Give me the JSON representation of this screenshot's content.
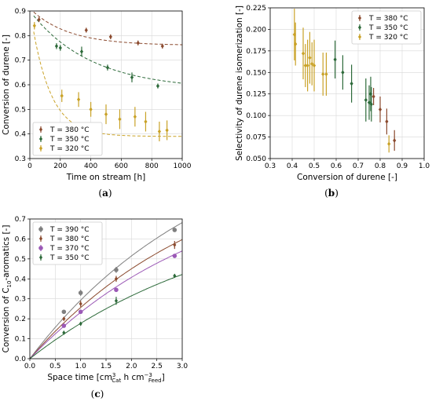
{
  "chart_data": [
    {
      "panel_label": "(a)",
      "type": "scatter",
      "xlabel": "Time on stream [h]",
      "ylabel": "Conversion of durene [-]",
      "xlim": [
        0,
        1000
      ],
      "ylim": [
        0.3,
        0.9
      ],
      "xticks": [
        0,
        200,
        400,
        600,
        800,
        1000
      ],
      "yticks": [
        0.3,
        0.4,
        0.5,
        0.6,
        0.7,
        0.8,
        0.9
      ],
      "legend_position": "bottom-left",
      "grid": true,
      "series": [
        {
          "name": "T = 380 °C",
          "color": "#8b4a2e",
          "marker": "diamond",
          "x": [
            60,
            370,
            530,
            710,
            870
          ],
          "y": [
            0.865,
            0.822,
            0.795,
            0.77,
            0.757
          ],
          "err": [
            0.01,
            0.01,
            0.01,
            0.01,
            0.01
          ],
          "fit": {
            "a": 0.76,
            "b": 0.15,
            "k": 0.004
          }
        },
        {
          "name": "T = 350 °C",
          "color": "#2d6a3a",
          "marker": "diamond",
          "x": [
            175,
            200,
            340,
            510,
            670,
            840
          ],
          "y": [
            0.757,
            0.75,
            0.735,
            0.67,
            0.63,
            0.595
          ],
          "err": [
            0.012,
            0.012,
            0.02,
            0.012,
            0.02,
            0.01
          ],
          "fit": {
            "a": 0.58,
            "b": 0.32,
            "k": 0.0025
          }
        },
        {
          "name": "T = 320 °C",
          "color": "#c9a227",
          "marker": "diamond",
          "x": [
            30,
            210,
            320,
            400,
            500,
            590,
            690,
            760,
            850,
            900
          ],
          "y": [
            0.84,
            0.555,
            0.54,
            0.5,
            0.48,
            0.46,
            0.47,
            0.45,
            0.41,
            0.415
          ],
          "err": [
            0.015,
            0.025,
            0.03,
            0.03,
            0.04,
            0.04,
            0.04,
            0.04,
            0.04,
            0.04
          ],
          "fit": {
            "a": 0.39,
            "b": 0.52,
            "k": 0.008
          }
        }
      ]
    },
    {
      "panel_label": "(b)",
      "type": "scatter",
      "xlabel": "Conversion of durene [-]",
      "ylabel": "Selectivity of durene isomerization [-]",
      "xlim": [
        0.3,
        1.0
      ],
      "ylim": [
        0.05,
        0.225
      ],
      "xticks": [
        0.3,
        0.4,
        0.5,
        0.6,
        0.7,
        0.8,
        0.9,
        1.0
      ],
      "yticks": [
        0.05,
        0.075,
        0.1,
        0.125,
        0.15,
        0.175,
        0.2,
        0.225
      ],
      "legend_position": "top-right",
      "grid": true,
      "series": [
        {
          "name": "T = 380 °C",
          "color": "#8b4a2e",
          "marker": "diamond",
          "x": [
            0.77,
            0.8,
            0.83,
            0.865
          ],
          "y": [
            0.122,
            0.107,
            0.093,
            0.071
          ],
          "err": [
            0.01,
            0.015,
            0.015,
            0.012
          ]
        },
        {
          "name": "T = 350 °C",
          "color": "#2d6a3a",
          "marker": "diamond",
          "x": [
            0.595,
            0.63,
            0.67,
            0.735,
            0.75,
            0.757,
            0.76
          ],
          "y": [
            0.165,
            0.15,
            0.137,
            0.118,
            0.115,
            0.125,
            0.113
          ],
          "err": [
            0.022,
            0.02,
            0.022,
            0.025,
            0.02,
            0.02,
            0.02
          ]
        },
        {
          "name": "T = 320 °C",
          "color": "#c9a227",
          "marker": "diamond",
          "x": [
            0.41,
            0.415,
            0.45,
            0.46,
            0.47,
            0.48,
            0.49,
            0.5,
            0.54,
            0.555,
            0.84
          ],
          "y": [
            0.194,
            0.183,
            0.172,
            0.158,
            0.158,
            0.167,
            0.16,
            0.158,
            0.148,
            0.148,
            0.067
          ],
          "err": [
            0.03,
            0.025,
            0.03,
            0.025,
            0.03,
            0.03,
            0.025,
            0.03,
            0.025,
            0.025,
            0.01
          ]
        }
      ]
    },
    {
      "panel_label": "(c)",
      "type": "scatter",
      "xlabel_parts": [
        "Space time [cm",
        "3",
        "Cat",
        " h cm",
        "−3",
        "Feed",
        "]"
      ],
      "ylabel_parts": [
        "Conversion of C",
        "10",
        "-aromatics [-]"
      ],
      "xlim": [
        0.0,
        3.0
      ],
      "ylim": [
        0.0,
        0.7
      ],
      "xticks": [
        0.0,
        0.5,
        1.0,
        1.5,
        2.0,
        2.5,
        3.0
      ],
      "yticks": [
        0.0,
        0.1,
        0.2,
        0.3,
        0.4,
        0.5,
        0.6,
        0.7
      ],
      "legend_position": "top-left",
      "grid": true,
      "series": [
        {
          "name": "T = 390 °C",
          "color": "#7f7f7f",
          "marker": "circle",
          "x": [
            0.67,
            1.0,
            1.7,
            2.85
          ],
          "y": [
            0.235,
            0.33,
            0.445,
            0.645
          ],
          "err": [
            0.01,
            0.015,
            0.015,
            0.01
          ],
          "fit": {
            "a": 1.2,
            "k": 0.28
          }
        },
        {
          "name": "T = 380 °C",
          "color": "#8b4a2e",
          "marker": "diamond",
          "x": [
            0.67,
            1.0,
            1.7,
            2.85
          ],
          "y": [
            0.2,
            0.275,
            0.4,
            0.57
          ],
          "err": [
            0.01,
            0.015,
            0.015,
            0.02
          ],
          "fit": {
            "a": 1.05,
            "k": 0.28
          }
        },
        {
          "name": "T = 370 °C",
          "color": "#9b59b6",
          "marker": "circle",
          "x": [
            0.67,
            1.0,
            1.7,
            2.85
          ],
          "y": [
            0.165,
            0.235,
            0.345,
            0.515
          ],
          "err": [
            0.01,
            0.01,
            0.01,
            0.01
          ],
          "fit": {
            "a": 0.95,
            "k": 0.28
          }
        },
        {
          "name": "T = 350 °C",
          "color": "#2d6a3a",
          "marker": "diamond",
          "x": [
            0.67,
            1.0,
            1.7,
            2.85
          ],
          "y": [
            0.13,
            0.175,
            0.29,
            0.415
          ],
          "err": [
            0.01,
            0.01,
            0.02,
            0.01
          ],
          "fit": {
            "a": 0.8,
            "k": 0.25
          }
        }
      ]
    }
  ]
}
